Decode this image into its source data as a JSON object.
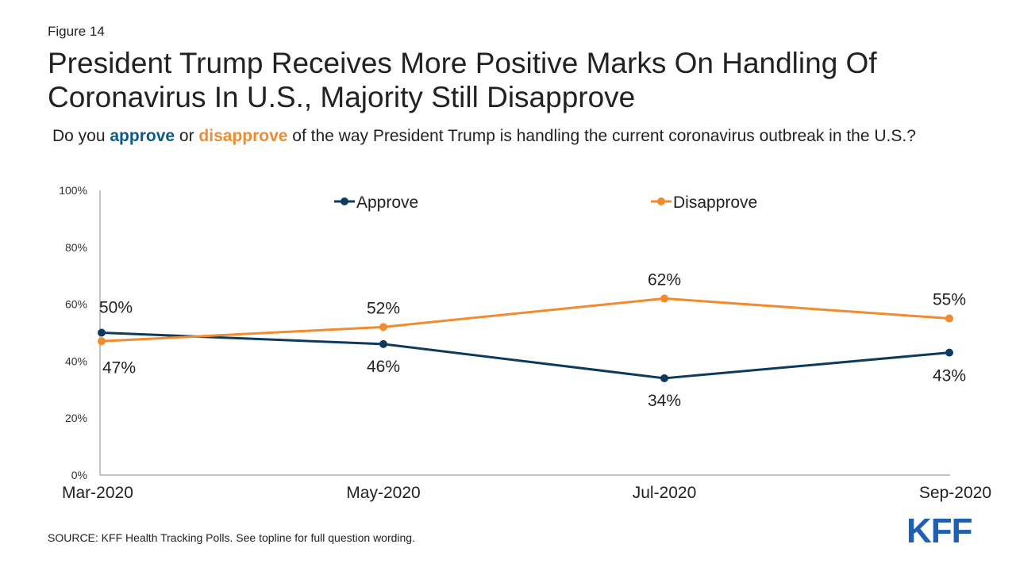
{
  "figure_label": "Figure 14",
  "title": "President Trump Receives More Positive Marks On Handling Of Coronavirus In U.S., Majority Still Disapprove",
  "subtitle": {
    "part1": "Do you ",
    "approve_word": "approve",
    "part2": " or ",
    "disapprove_word": "disapprove",
    "part3": " of the way President Trump is handling the current coronavirus outbreak in the U.S.?"
  },
  "source": "SOURCE: KFF Health Tracking Polls. See topline for full question wording.",
  "logo_text": "KFF",
  "colors": {
    "approve": "#0d3b5e",
    "disapprove": "#f28a2e",
    "axis": "#888888"
  },
  "chart_data": {
    "type": "line",
    "categories": [
      "Mar-2020",
      "May-2020",
      "Jul-2020",
      "Sep-2020"
    ],
    "series": [
      {
        "name": "Approve",
        "values": [
          50,
          46,
          34,
          43
        ],
        "labels": [
          "50%",
          "46%",
          "34%",
          "43%"
        ],
        "color": "#0d3b5e"
      },
      {
        "name": "Disapprove",
        "values": [
          47,
          52,
          62,
          55
        ],
        "labels": [
          "47%",
          "52%",
          "62%",
          "55%"
        ],
        "color": "#f28a2e"
      }
    ],
    "y_ticks": [
      "0%",
      "20%",
      "40%",
      "60%",
      "80%",
      "100%"
    ],
    "ylim": [
      0,
      100
    ],
    "legend": "top-center",
    "grid": false
  }
}
